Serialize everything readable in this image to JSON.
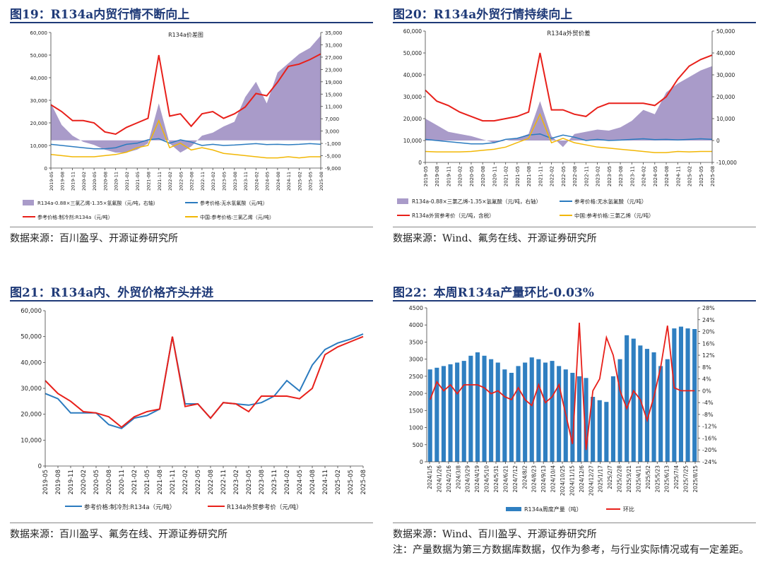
{
  "figures": [
    {
      "title": "图19：R134a内贸行情不断向上",
      "source": "数据来源：百川盈孚、开源证券研究所"
    },
    {
      "title": "图20：R134a外贸行情持续向上",
      "source": "数据来源：Wind、氟务在线、开源证券研究所"
    },
    {
      "title": "图21：R134a内、外贸价格齐头并进",
      "source": "数据来源：百川盈孚、氟务在线、开源证券研究所"
    },
    {
      "title": "图22：本周R134a产量环比-0.03%",
      "source": "数据来源：Wind、百川盈孚、开源证券研究所",
      "note": "注：产量数据为第三方数据库数据，仅作为参考，与行业实际情况或有一定差距。"
    }
  ],
  "chart_data": [
    {
      "type": "line",
      "title": "R134a价差图",
      "left_ticks": [
        "0",
        "10,000",
        "20,000",
        "30,000",
        "40,000",
        "50,000",
        "60,000"
      ],
      "right_ticks": [
        "-9,000",
        "-5,000",
        "-1,000",
        "3,000",
        "7,000",
        "11,000",
        "15,000",
        "19,000",
        "23,000",
        "27,000",
        "31,000",
        "35,000"
      ],
      "ylim_left": [
        0,
        60000
      ],
      "ylim_right": [
        -9000,
        35000
      ],
      "x_labels": [
        "2019-05",
        "2019-08",
        "2019-11",
        "2020-02",
        "2020-05",
        "2020-08",
        "2020-11",
        "2021-02",
        "2021-05",
        "2021-08",
        "2021-11",
        "2022-02",
        "2022-05",
        "2022-08",
        "2022-11",
        "2023-02",
        "2023-05",
        "2023-08",
        "2023-11",
        "2024-02",
        "2024-05",
        "2024-08",
        "2024-11",
        "2025-02",
        "2025-05",
        "2025-08"
      ],
      "legend": [
        "R134a-0.88×三氯乙烯-1.35×氢氟酸（元/吨，右轴）",
        "参考价格:无水氢氟酸（元/吨）",
        "参考价格:制冷剂:R134a（元/吨）",
        "中国:参考价格:三氯乙烯（元/吨）"
      ],
      "colors": [
        "#a99bc9",
        "#2b7bbf",
        "#e8201a",
        "#f2b705"
      ],
      "series": [
        {
          "name": "R134a-0.88×三氯乙烯-1.35×氢氟酸（元/吨，右轴）",
          "axis": "right",
          "kind": "area",
          "x": [
            0,
            1,
            2,
            3,
            4,
            5,
            6,
            7,
            8,
            9,
            10,
            11,
            12,
            13,
            14,
            15,
            16,
            17,
            18,
            19,
            20,
            21,
            22,
            23,
            24,
            25
          ],
          "values": [
            12000,
            5000,
            1500,
            -500,
            -1500,
            -3000,
            -4000,
            -4000,
            -3000,
            -1000,
            12000,
            -1000,
            -4000,
            -2000,
            1500,
            2500,
            4500,
            6000,
            14000,
            19000,
            12000,
            22000,
            25000,
            28000,
            30000,
            34000
          ]
        },
        {
          "name": "参考价格:无水氢氟酸（元/吨）",
          "axis": "left",
          "x": [
            0,
            1,
            2,
            3,
            4,
            5,
            6,
            7,
            8,
            9,
            10,
            11,
            12,
            13,
            14,
            15,
            16,
            17,
            18,
            19,
            20,
            21,
            22,
            23,
            24,
            25
          ],
          "values": [
            10500,
            10000,
            9500,
            9000,
            8500,
            8500,
            9000,
            10500,
            11000,
            12500,
            13000,
            11000,
            12500,
            11500,
            10000,
            10500,
            10000,
            10200,
            10500,
            10800,
            10400,
            10500,
            10300,
            10500,
            10800,
            10500
          ]
        },
        {
          "name": "参考价格:制冷剂:R134a（元/吨）",
          "axis": "left",
          "x": [
            0,
            1,
            2,
            3,
            4,
            5,
            6,
            7,
            8,
            9,
            10,
            11,
            12,
            13,
            14,
            15,
            16,
            17,
            18,
            19,
            20,
            21,
            22,
            23,
            24,
            25
          ],
          "values": [
            28000,
            25000,
            21000,
            21000,
            20000,
            16000,
            15000,
            18000,
            20000,
            22000,
            50000,
            23000,
            24000,
            18500,
            24000,
            25000,
            22000,
            24000,
            27000,
            33000,
            32000,
            38000,
            45000,
            46000,
            48000,
            50500
          ]
        },
        {
          "name": "中国:参考价格:三氯乙烯（元/吨）",
          "axis": "left",
          "x": [
            0,
            1,
            2,
            3,
            4,
            5,
            6,
            7,
            8,
            9,
            10,
            11,
            12,
            13,
            14,
            15,
            16,
            17,
            18,
            19,
            20,
            21,
            22,
            23,
            24,
            25
          ],
          "values": [
            6000,
            5500,
            5000,
            5000,
            5000,
            5500,
            6000,
            7000,
            9000,
            10000,
            21000,
            9000,
            11000,
            8000,
            9000,
            8000,
            6500,
            6000,
            5500,
            5000,
            4500,
            4500,
            5000,
            4500,
            5000,
            5000
          ]
        }
      ]
    },
    {
      "type": "line",
      "title": "R134a外贸价差",
      "left_ticks": [
        "0",
        "10,000",
        "20,000",
        "30,000",
        "40,000",
        "50,000",
        "60,000"
      ],
      "right_ticks": [
        "-10,000",
        "0",
        "10,000",
        "20,000",
        "30,000",
        "40,000",
        "50,000"
      ],
      "ylim_left": [
        0,
        60000
      ],
      "ylim_right": [
        -10000,
        50000
      ],
      "x_labels": [
        "2019-05",
        "2019-08",
        "2019-11",
        "2020-02",
        "2020-05",
        "2020-08",
        "2020-11",
        "2021-02",
        "2021-05",
        "2021-08",
        "2021-11",
        "2022-02",
        "2022-05",
        "2022-08",
        "2022-11",
        "2023-02",
        "2023-05",
        "2023-08",
        "2023-11",
        "2024-02",
        "2024-05",
        "2024-08",
        "2024-11",
        "2025-02",
        "2025-05",
        "2025-08"
      ],
      "legend": [
        "R134a-0.88×三氯乙烯-1.35×氢氟酸（元/吨，右轴）",
        "参考价格:无水氢氟酸（元/吨）",
        "R134a外贸参考价（元/吨，含税）",
        "中国:参考价格:三氯乙烯（元/吨）"
      ],
      "colors": [
        "#a99bc9",
        "#2b7bbf",
        "#e8201a",
        "#f2b705"
      ],
      "series": [
        {
          "name": "R134a-0.88×三氯乙烯-1.35×氢氟酸（元/吨，右轴）",
          "axis": "right",
          "kind": "area",
          "x": [
            0,
            1,
            2,
            3,
            4,
            5,
            6,
            7,
            8,
            9,
            10,
            11,
            12,
            13,
            14,
            15,
            16,
            17,
            18,
            19,
            20,
            21,
            22,
            23,
            24,
            25
          ],
          "values": [
            10000,
            7000,
            4000,
            3000,
            2000,
            500,
            -1000,
            0,
            1000,
            3000,
            18000,
            2000,
            -3000,
            3000,
            4000,
            5000,
            4500,
            6000,
            9000,
            14000,
            12000,
            22000,
            26000,
            29000,
            32000,
            34000
          ]
        },
        {
          "name": "参考价格:无水氢氟酸（元/吨）",
          "axis": "left",
          "x": [
            0,
            1,
            2,
            3,
            4,
            5,
            6,
            7,
            8,
            9,
            10,
            11,
            12,
            13,
            14,
            15,
            16,
            17,
            18,
            19,
            20,
            21,
            22,
            23,
            24,
            25
          ],
          "values": [
            10500,
            10000,
            9500,
            9000,
            8500,
            8500,
            9000,
            10500,
            11000,
            12500,
            13000,
            11000,
            12500,
            11500,
            10000,
            10500,
            10000,
            10200,
            10500,
            10800,
            10400,
            10500,
            10300,
            10500,
            10800,
            10500
          ]
        },
        {
          "name": "R134a外贸参考价（元/吨，含税）",
          "axis": "left",
          "x": [
            0,
            1,
            2,
            3,
            4,
            5,
            6,
            7,
            8,
            9,
            10,
            11,
            12,
            13,
            14,
            15,
            16,
            17,
            18,
            19,
            20,
            21,
            22,
            23,
            24,
            25
          ],
          "values": [
            33000,
            28000,
            26000,
            23000,
            21000,
            19000,
            19000,
            20000,
            21000,
            23000,
            50000,
            24000,
            24000,
            22000,
            21000,
            25000,
            27000,
            27000,
            27000,
            27000,
            26000,
            30000,
            38000,
            44000,
            47000,
            49000
          ]
        },
        {
          "name": "中国:参考价格:三氯乙烯（元/吨）",
          "axis": "left",
          "x": [
            0,
            1,
            2,
            3,
            4,
            5,
            6,
            7,
            8,
            9,
            10,
            11,
            12,
            13,
            14,
            15,
            16,
            17,
            18,
            19,
            20,
            21,
            22,
            23,
            24,
            25
          ],
          "values": [
            5000,
            4800,
            4800,
            4800,
            5000,
            5500,
            6000,
            7000,
            9000,
            11000,
            22000,
            9000,
            11000,
            9000,
            8000,
            7000,
            6500,
            6000,
            5500,
            5000,
            4500,
            4500,
            5000,
            4800,
            5000,
            5000
          ]
        }
      ]
    },
    {
      "type": "line",
      "left_ticks": [
        "0",
        "10,000",
        "20,000",
        "30,000",
        "40,000",
        "50,000",
        "60,000"
      ],
      "ylim": [
        0,
        60000
      ],
      "x_labels": [
        "2019-05",
        "2019-08",
        "2019-11",
        "2020-02",
        "2020-05",
        "2020-08",
        "2020-11",
        "2021-02",
        "2021-05",
        "2021-08",
        "2021-11",
        "2022-02",
        "2022-05",
        "2022-08",
        "2022-11",
        "2023-02",
        "2023-05",
        "2023-08",
        "2023-11",
        "2024-02",
        "2024-05",
        "2024-08",
        "2024-11",
        "2025-02",
        "2025-05",
        "2025-08"
      ],
      "legend": [
        "参考价格:制冷剂:R134a（元/吨）",
        "R134a外贸参考价（元/吨）"
      ],
      "colors": [
        "#2b7bbf",
        "#e8201a"
      ],
      "series": [
        {
          "name": "参考价格:制冷剂:R134a（元/吨）",
          "x": [
            0,
            1,
            2,
            3,
            4,
            5,
            6,
            7,
            8,
            9,
            10,
            11,
            12,
            13,
            14,
            15,
            16,
            17,
            18,
            19,
            20,
            21,
            22,
            23,
            24,
            25
          ],
          "values": [
            28000,
            26000,
            20500,
            20500,
            20500,
            16000,
            14500,
            18500,
            19500,
            22000,
            50000,
            24000,
            24000,
            18500,
            24500,
            24000,
            23500,
            24500,
            27000,
            33000,
            29000,
            39000,
            45000,
            47500,
            49000,
            51000
          ]
        },
        {
          "name": "R134a外贸参考价（元/吨）",
          "x": [
            0,
            1,
            2,
            3,
            4,
            5,
            6,
            7,
            8,
            9,
            10,
            11,
            12,
            13,
            14,
            15,
            16,
            17,
            18,
            19,
            20,
            21,
            22,
            23,
            24,
            25
          ],
          "values": [
            33000,
            28000,
            25000,
            21000,
            20500,
            19000,
            15000,
            19000,
            21000,
            22000,
            50000,
            23000,
            24000,
            18500,
            24500,
            24000,
            21000,
            27000,
            27000,
            27000,
            26000,
            30000,
            43000,
            46000,
            48000,
            50000
          ]
        }
      ]
    },
    {
      "type": "bar",
      "left_ticks": [
        "0",
        "500",
        "1000",
        "1500",
        "2000",
        "2500",
        "3000",
        "3500",
        "4000",
        "4500"
      ],
      "right_ticks": [
        "-24%",
        "-20%",
        "-16%",
        "-12%",
        "-8%",
        "-4%",
        "0%",
        "4%",
        "8%",
        "12%",
        "16%",
        "20%",
        "24%",
        "28%"
      ],
      "ylim_left": [
        0,
        4500
      ],
      "ylim_right": [
        -24,
        28
      ],
      "x_labels": [
        "2024/1/5",
        "2024/1/26",
        "2024/2/16",
        "2024/3/8",
        "2024/3/29",
        "2024/4/19",
        "2024/5/10",
        "2024/5/31",
        "2024/6/21",
        "2024/7/12",
        "2024/8/2",
        "2024/8/23",
        "2024/9/13",
        "2024/10/4",
        "2024/10/25",
        "2024/11/15",
        "2024/12/6",
        "2024/12/27",
        "2025/1/17",
        "2025/2/7",
        "2025/2/28",
        "2025/3/21",
        "2025/4/11",
        "2025/5/2",
        "2025/5/23",
        "2025/6/13",
        "2025/7/4",
        "2025/7/25",
        "2025/8/15"
      ],
      "legend": [
        "R134a周度产量（吨）",
        "环比"
      ],
      "colors": [
        "#2f7fc1",
        "#e8201a"
      ],
      "series": [
        {
          "name": "R134a周度产量（吨）",
          "axis": "left",
          "values": [
            2700,
            2750,
            2800,
            2850,
            2900,
            2950,
            3100,
            3200,
            3100,
            3000,
            2900,
            2700,
            2600,
            2800,
            2900,
            3050,
            3000,
            2900,
            2950,
            2800,
            2700,
            2600,
            2500,
            2450,
            1900,
            1800,
            1750,
            2500,
            3000,
            3700,
            3600,
            3400,
            3300,
            3200,
            2800,
            3000,
            3900,
            3950,
            3900,
            3880
          ]
        },
        {
          "name": "环比",
          "axis": "right",
          "values": [
            -3,
            3,
            0,
            2,
            -1,
            2,
            2,
            2,
            1,
            -1,
            0,
            -2,
            -3,
            1,
            -3,
            -5,
            2,
            -4,
            -2,
            2,
            -8,
            -18,
            23,
            -20,
            0,
            4,
            18,
            12,
            0,
            -6,
            0,
            -3,
            -10,
            -2,
            8,
            22,
            1,
            0,
            0,
            0
          ]
        }
      ]
    }
  ]
}
